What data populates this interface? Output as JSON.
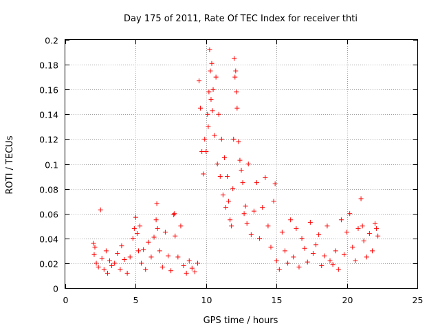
{
  "chart_data": {
    "type": "scatter",
    "title": "Day 175 of 2011, Rate Of TEC Index for receiver thti",
    "xlabel": "GPS time / hours",
    "ylabel": "ROTI / TECUs",
    "xlim": [
      0,
      25
    ],
    "ylim": [
      0,
      0.2
    ],
    "xticks": [
      0,
      5,
      10,
      15,
      20,
      25
    ],
    "yticks": [
      0,
      0.02,
      0.04,
      0.06,
      0.08,
      0.1,
      0.12,
      0.14,
      0.16,
      0.18,
      0.2
    ],
    "grid": true,
    "marker": "+",
    "color": "#ff0000",
    "x": [
      2.0,
      2.05,
      2.1,
      2.2,
      2.35,
      2.5,
      2.6,
      2.75,
      2.9,
      3.0,
      3.15,
      3.3,
      3.5,
      3.7,
      3.9,
      4.0,
      4.2,
      4.4,
      4.6,
      4.8,
      4.9,
      5.0,
      5.1,
      5.2,
      5.3,
      5.4,
      5.55,
      5.7,
      5.9,
      6.1,
      6.3,
      6.45,
      6.5,
      6.55,
      6.7,
      6.9,
      7.1,
      7.3,
      7.5,
      7.7,
      7.75,
      7.8,
      8.0,
      8.2,
      8.4,
      8.6,
      8.8,
      9.0,
      9.2,
      9.4,
      9.5,
      9.6,
      9.7,
      9.8,
      9.9,
      10.0,
      10.1,
      10.15,
      10.2,
      10.25,
      10.3,
      10.35,
      10.4,
      10.45,
      10.5,
      10.6,
      10.7,
      10.8,
      10.9,
      11.0,
      11.1,
      11.2,
      11.3,
      11.4,
      11.5,
      11.6,
      11.7,
      11.8,
      11.9,
      11.95,
      12.0,
      12.05,
      12.1,
      12.15,
      12.2,
      12.3,
      12.4,
      12.5,
      12.6,
      12.7,
      12.8,
      12.9,
      13.0,
      13.2,
      13.4,
      13.6,
      13.8,
      14.0,
      14.2,
      14.4,
      14.6,
      14.8,
      14.9,
      15.0,
      15.2,
      15.4,
      15.6,
      15.8,
      16.0,
      16.2,
      16.4,
      16.6,
      16.8,
      17.0,
      17.2,
      17.4,
      17.6,
      17.8,
      18.0,
      18.2,
      18.4,
      18.6,
      18.8,
      19.0,
      19.2,
      19.4,
      19.6,
      19.8,
      20.0,
      20.2,
      20.4,
      20.6,
      20.8,
      21.0,
      21.1,
      21.2,
      21.4,
      21.6,
      21.8,
      22.0,
      22.1,
      22.2
    ],
    "y": [
      0.036,
      0.027,
      0.033,
      0.02,
      0.017,
      0.063,
      0.024,
      0.015,
      0.03,
      0.012,
      0.022,
      0.018,
      0.02,
      0.028,
      0.015,
      0.034,
      0.023,
      0.012,
      0.025,
      0.04,
      0.048,
      0.057,
      0.044,
      0.03,
      0.05,
      0.02,
      0.031,
      0.015,
      0.037,
      0.025,
      0.041,
      0.055,
      0.068,
      0.048,
      0.03,
      0.017,
      0.045,
      0.026,
      0.014,
      0.059,
      0.06,
      0.042,
      0.025,
      0.05,
      0.018,
      0.012,
      0.022,
      0.016,
      0.013,
      0.02,
      0.167,
      0.145,
      0.11,
      0.092,
      0.12,
      0.11,
      0.14,
      0.13,
      0.158,
      0.192,
      0.175,
      0.152,
      0.181,
      0.143,
      0.16,
      0.123,
      0.17,
      0.1,
      0.14,
      0.09,
      0.12,
      0.075,
      0.105,
      0.065,
      0.09,
      0.07,
      0.055,
      0.05,
      0.08,
      0.12,
      0.185,
      0.17,
      0.175,
      0.158,
      0.145,
      0.118,
      0.103,
      0.095,
      0.085,
      0.06,
      0.066,
      0.052,
      0.1,
      0.043,
      0.062,
      0.085,
      0.04,
      0.065,
      0.089,
      0.05,
      0.033,
      0.07,
      0.084,
      0.022,
      0.015,
      0.045,
      0.03,
      0.02,
      0.055,
      0.025,
      0.048,
      0.017,
      0.04,
      0.032,
      0.021,
      0.053,
      0.028,
      0.035,
      0.043,
      0.018,
      0.026,
      0.05,
      0.022,
      0.019,
      0.03,
      0.015,
      0.055,
      0.027,
      0.045,
      0.06,
      0.033,
      0.022,
      0.048,
      0.072,
      0.05,
      0.038,
      0.025,
      0.044,
      0.03,
      0.052,
      0.048,
      0.042
    ]
  }
}
